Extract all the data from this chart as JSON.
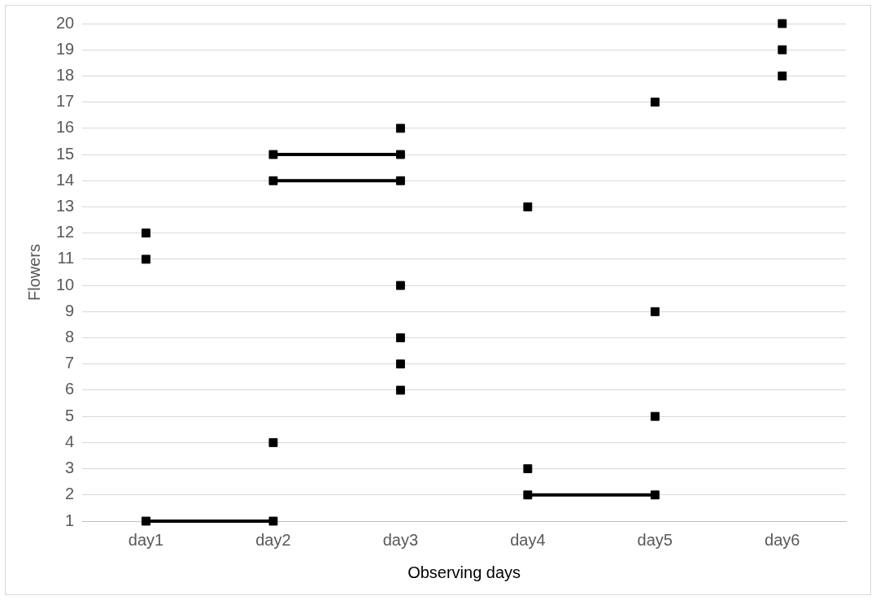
{
  "chart_data": {
    "type": "line",
    "xlabel": "Observing days",
    "ylabel": "Flowers",
    "categories": [
      "day1",
      "day2",
      "day3",
      "day4",
      "day5",
      "day6"
    ],
    "series": [
      {
        "type": "line",
        "color": "#000000",
        "values": [
          1,
          1,
          null,
          null,
          null,
          null
        ]
      },
      {
        "type": "line",
        "color": "#000000",
        "values": [
          null,
          14,
          14,
          null,
          null,
          null
        ]
      },
      {
        "type": "line",
        "color": "#000000",
        "values": [
          null,
          15,
          15,
          null,
          null,
          null
        ]
      },
      {
        "type": "line",
        "color": "#000000",
        "values": [
          null,
          null,
          null,
          2,
          2,
          null
        ]
      },
      {
        "type": "scatter",
        "color": "#000000",
        "x": [
          "day1",
          "day1",
          "day2",
          "day3",
          "day3",
          "day3",
          "day3",
          "day3",
          "day4",
          "day4",
          "day5",
          "day5",
          "day5",
          "day6",
          "day6",
          "day6"
        ],
        "values": [
          11,
          12,
          4,
          16,
          10,
          8,
          7,
          6,
          13,
          3,
          17,
          9,
          5,
          18,
          19,
          20
        ]
      }
    ],
    "ylim": [
      1,
      20
    ],
    "yticks": [
      1,
      2,
      3,
      4,
      5,
      6,
      7,
      8,
      9,
      10,
      11,
      12,
      13,
      14,
      15,
      16,
      17,
      18,
      19,
      20
    ],
    "grid": "y",
    "marker": "square",
    "line_style": "solid",
    "legend": false
  }
}
